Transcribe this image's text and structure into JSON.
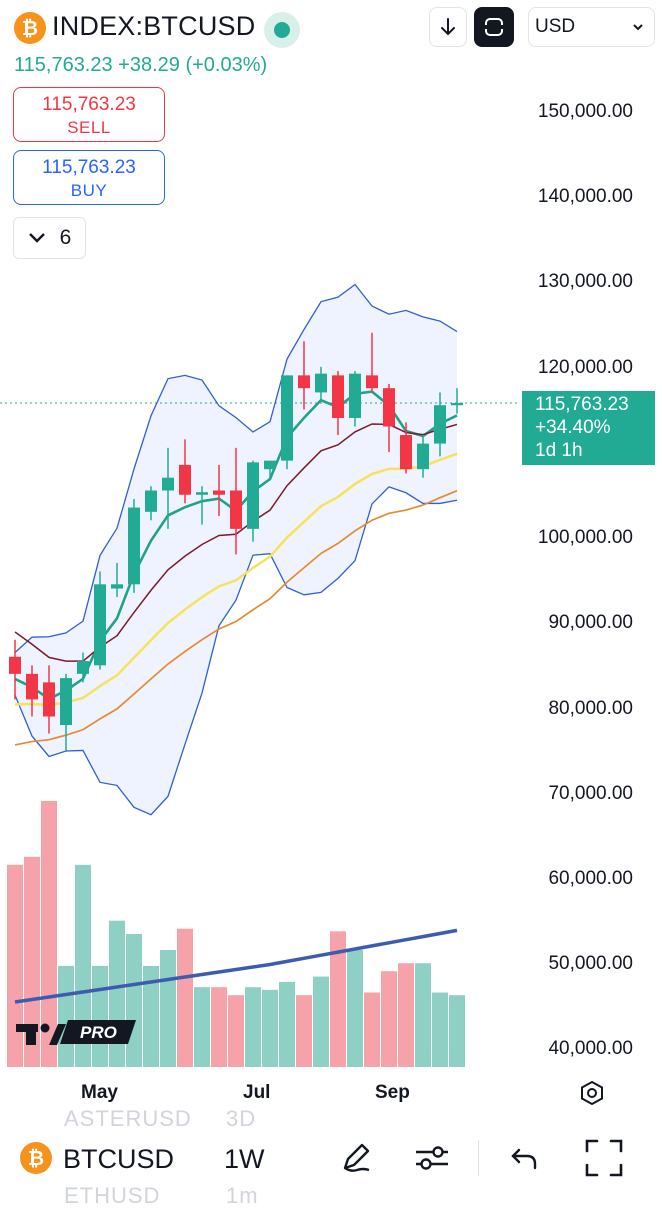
{
  "header": {
    "symbol": "INDEX:BTCUSD",
    "price_line": "115,763.23 +38.29 (+0.03%)",
    "currency": "USD",
    "logo_glyph": "₿"
  },
  "trade": {
    "sell_price": "115,763.23",
    "sell_label": "SELL",
    "buy_price": "115,763.23",
    "buy_label": "BUY"
  },
  "indicators": {
    "count": "6"
  },
  "price_axis": [
    "150,000.00",
    "140,000.00",
    "130,000.00",
    "120,000.00",
    "100,000.00",
    "90,000.00",
    "80,000.00",
    "70,000.00",
    "60,000.00",
    "50,000.00",
    "40,000.00"
  ],
  "price_tag": {
    "price": "115,763.23",
    "change": "+34.40%",
    "countdown": "1d 1h"
  },
  "time_axis": [
    "May",
    "Jul",
    "Sep"
  ],
  "logo": {
    "text": "PRO"
  },
  "ghost_list": {
    "item1_symbol": "ASTERUSD",
    "item1_interval": "3D",
    "item2_symbol": "ETHUSD",
    "item2_interval": "1m"
  },
  "bottom_bar": {
    "symbol": "BTCUSD",
    "interval": "1W"
  },
  "colors": {
    "up": "#22ab94",
    "down": "#f23645",
    "accent_blue": "#2962ff",
    "bitcoin": "#F7931A"
  },
  "icons": [
    "download-icon",
    "fullscreen-icon",
    "chevron-down-icon",
    "settings-hexagon-icon",
    "draw-pen-icon",
    "indicator-sliders-icon",
    "undo-icon",
    "expand-icon"
  ],
  "chart_data": {
    "type": "candlestick",
    "interval": "1W",
    "current_price": 115763.23,
    "ylim": [
      40000,
      155000
    ],
    "candles": [
      {
        "o": 86000,
        "h": 88000,
        "l": 81000,
        "c": 84000
      },
      {
        "o": 84000,
        "h": 85000,
        "l": 79000,
        "c": 81000
      },
      {
        "o": 83000,
        "h": 85000,
        "l": 77000,
        "c": 79000
      },
      {
        "o": 78000,
        "h": 84000,
        "l": 75000,
        "c": 83500
      },
      {
        "o": 84000,
        "h": 86500,
        "l": 83000,
        "c": 85500
      },
      {
        "o": 85000,
        "h": 96000,
        "l": 84500,
        "c": 94500
      },
      {
        "o": 94000,
        "h": 97000,
        "l": 93000,
        "c": 94500
      },
      {
        "o": 94500,
        "h": 104500,
        "l": 93500,
        "c": 103500
      },
      {
        "o": 103000,
        "h": 106000,
        "l": 102000,
        "c": 105500
      },
      {
        "o": 105500,
        "h": 110500,
        "l": 101000,
        "c": 107000
      },
      {
        "o": 108500,
        "h": 111500,
        "l": 104000,
        "c": 105000
      },
      {
        "o": 105000,
        "h": 106000,
        "l": 101500,
        "c": 105300
      },
      {
        "o": 105500,
        "h": 108500,
        "l": 102500,
        "c": 105000
      },
      {
        "o": 105500,
        "h": 110500,
        "l": 98000,
        "c": 101000
      },
      {
        "o": 101000,
        "h": 109000,
        "l": 99500,
        "c": 108800
      },
      {
        "o": 108000,
        "h": 109000,
        "l": 107000,
        "c": 109000
      },
      {
        "o": 109000,
        "h": 119000,
        "l": 108000,
        "c": 119000
      },
      {
        "o": 119000,
        "h": 123000,
        "l": 115000,
        "c": 117500
      },
      {
        "o": 117000,
        "h": 120000,
        "l": 116000,
        "c": 119200
      },
      {
        "o": 119000,
        "h": 119500,
        "l": 112000,
        "c": 114000
      },
      {
        "o": 114000,
        "h": 119500,
        "l": 113000,
        "c": 119200
      },
      {
        "o": 119000,
        "h": 124000,
        "l": 117000,
        "c": 117500
      },
      {
        "o": 117500,
        "h": 118000,
        "l": 110000,
        "c": 113000
      },
      {
        "o": 112000,
        "h": 113500,
        "l": 107500,
        "c": 108000
      },
      {
        "o": 108000,
        "h": 112000,
        "l": 107000,
        "c": 111000
      },
      {
        "o": 111000,
        "h": 117000,
        "l": 109500,
        "c": 115500
      },
      {
        "o": 115500,
        "h": 117500,
        "l": 114500,
        "c": 115763
      }
    ],
    "volume_ratio": [
      0.76,
      0.79,
      1.0,
      0.38,
      0.76,
      0.38,
      0.55,
      0.5,
      0.38,
      0.44,
      0.52,
      0.3,
      0.3,
      0.27,
      0.3,
      0.29,
      0.32,
      0.27,
      0.34,
      0.51,
      0.44,
      0.28,
      0.36,
      0.39,
      0.39,
      0.28,
      0.27
    ]
  }
}
